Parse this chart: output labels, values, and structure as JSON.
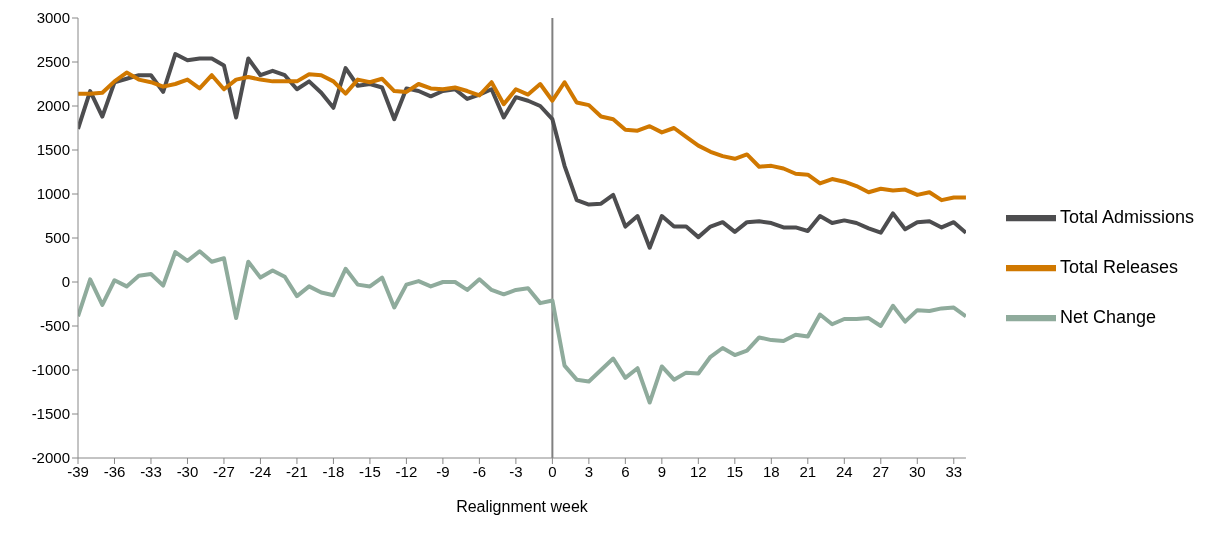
{
  "chart_data": {
    "type": "line",
    "xlabel": "Realignment week",
    "x": [
      -39,
      -38,
      -37,
      -36,
      -35,
      -34,
      -33,
      -32,
      -31,
      -30,
      -29,
      -28,
      -27,
      -26,
      -25,
      -24,
      -23,
      -22,
      -21,
      -20,
      -19,
      -18,
      -17,
      -16,
      -15,
      -14,
      -13,
      -12,
      -11,
      -10,
      -9,
      -8,
      -7,
      -6,
      -5,
      -4,
      -3,
      -2,
      -1,
      0,
      1,
      2,
      3,
      4,
      5,
      6,
      7,
      8,
      9,
      10,
      11,
      12,
      13,
      14,
      15,
      16,
      17,
      18,
      19,
      20,
      21,
      22,
      23,
      24,
      25,
      26,
      27,
      28,
      29,
      30,
      31,
      32,
      33,
      34
    ],
    "series": [
      {
        "name": "Total Admissions",
        "color": "#4d4d4f",
        "values": [
          1740,
          2170,
          1880,
          2270,
          2310,
          2350,
          2350,
          2160,
          2590,
          2520,
          2540,
          2540,
          2460,
          1870,
          2540,
          2350,
          2400,
          2350,
          2190,
          2280,
          2150,
          1980,
          2430,
          2230,
          2250,
          2210,
          1850,
          2200,
          2170,
          2110,
          2170,
          2190,
          2080,
          2130,
          2190,
          1870,
          2100,
          2060,
          2000,
          1850,
          1320,
          930,
          880,
          890,
          990,
          630,
          750,
          390,
          750,
          630,
          630,
          510,
          630,
          680,
          570,
          680,
          690,
          670,
          620,
          620,
          580,
          750,
          670,
          700,
          670,
          610,
          560,
          780,
          600,
          680,
          690,
          620,
          680,
          560
        ]
      },
      {
        "name": "Total Releases",
        "color": "#d07800",
        "values": [
          2140,
          2140,
          2150,
          2280,
          2380,
          2300,
          2270,
          2220,
          2250,
          2300,
          2200,
          2350,
          2190,
          2300,
          2330,
          2300,
          2280,
          2280,
          2280,
          2360,
          2350,
          2280,
          2140,
          2300,
          2270,
          2310,
          2170,
          2160,
          2250,
          2200,
          2190,
          2210,
          2170,
          2120,
          2270,
          2020,
          2190,
          2130,
          2250,
          2060,
          2270,
          2040,
          2010,
          1880,
          1850,
          1730,
          1720,
          1770,
          1700,
          1750,
          1650,
          1550,
          1480,
          1430,
          1400,
          1450,
          1310,
          1320,
          1290,
          1230,
          1220,
          1120,
          1170,
          1140,
          1090,
          1020,
          1060,
          1040,
          1050,
          990,
          1020,
          930,
          960,
          960
        ]
      },
      {
        "name": "Net Change",
        "color": "#8fab9c",
        "values": [
          -390,
          30,
          -260,
          20,
          -50,
          70,
          90,
          -40,
          340,
          240,
          350,
          230,
          270,
          -410,
          230,
          50,
          130,
          60,
          -160,
          -50,
          -120,
          -150,
          150,
          -30,
          -50,
          50,
          -290,
          -30,
          10,
          -50,
          0,
          0,
          -90,
          30,
          -90,
          -140,
          -90,
          -70,
          -240,
          -210,
          -950,
          -1110,
          -1130,
          -1000,
          -870,
          -1090,
          -980,
          -1370,
          -960,
          -1110,
          -1030,
          -1040,
          -850,
          -750,
          -830,
          -780,
          -630,
          -660,
          -670,
          -600,
          -620,
          -370,
          -480,
          -420,
          -420,
          -410,
          -500,
          -270,
          -450,
          -320,
          -330,
          -300,
          -290,
          -390
        ]
      }
    ],
    "xlim": [
      -39,
      34
    ],
    "xticks": [
      -39,
      -36,
      -33,
      -30,
      -27,
      -24,
      -21,
      -18,
      -15,
      -12,
      -9,
      -6,
      -3,
      0,
      3,
      6,
      9,
      12,
      15,
      18,
      21,
      24,
      27,
      30,
      33
    ],
    "ylim": [
      -2000,
      3000
    ],
    "yticks": [
      -2000,
      -1500,
      -1000,
      -500,
      0,
      500,
      1000,
      1500,
      2000,
      2500,
      3000
    ],
    "ref_lines": [
      {
        "axis": "x",
        "value": 0,
        "color": "#808080"
      }
    ],
    "grid": false,
    "legend": "right",
    "marker": "none",
    "line_style": "solid"
  }
}
